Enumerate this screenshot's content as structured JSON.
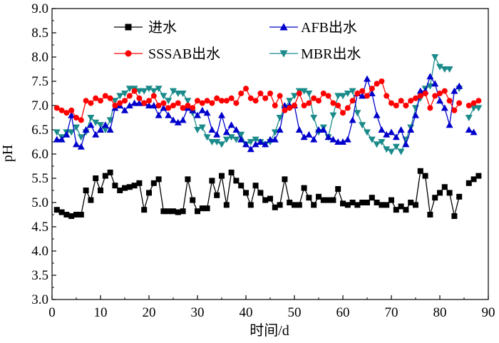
{
  "chart_data": {
    "type": "line",
    "xlabel": "时间/d",
    "ylabel": "pH",
    "xlim": [
      0,
      90
    ],
    "ylim": [
      3.0,
      9.0
    ],
    "xticks": [
      0,
      10,
      20,
      30,
      40,
      50,
      60,
      70,
      80,
      90
    ],
    "yticks": [
      3.0,
      3.5,
      4.0,
      4.5,
      5.0,
      5.5,
      6.0,
      6.5,
      7.0,
      7.5,
      8.0,
      8.5,
      9.0
    ],
    "legend_position": "top",
    "series": [
      {
        "name": "进水",
        "color": "#000000",
        "marker": "square",
        "x": [
          1,
          2,
          3,
          4,
          5,
          6,
          7,
          8,
          9,
          10,
          11,
          12,
          13,
          14,
          15,
          16,
          17,
          18,
          19,
          20,
          21,
          22,
          23,
          24,
          25,
          26,
          27,
          28,
          29,
          30,
          31,
          32,
          33,
          34,
          35,
          36,
          37,
          38,
          39,
          40,
          41,
          42,
          43,
          44,
          45,
          46,
          47,
          48,
          49,
          50,
          51,
          52,
          53,
          54,
          55,
          56,
          57,
          58,
          59,
          60,
          61,
          62,
          63,
          64,
          65,
          66,
          67,
          68,
          69,
          70,
          71,
          72,
          73,
          74,
          75,
          76,
          77,
          78,
          79,
          80,
          81,
          82,
          83,
          84,
          85,
          86,
          87,
          88
        ],
        "values": [
          4.85,
          4.8,
          4.75,
          4.72,
          4.75,
          4.75,
          5.25,
          5.05,
          5.5,
          5.25,
          5.55,
          5.62,
          5.35,
          5.25,
          5.3,
          5.32,
          5.35,
          5.4,
          4.85,
          5.2,
          5.4,
          5.48,
          4.82,
          4.82,
          4.82,
          4.8,
          4.82,
          5.48,
          5.05,
          4.82,
          4.88,
          4.88,
          5.45,
          5.15,
          5.55,
          4.95,
          5.62,
          5.45,
          5.35,
          5.2,
          4.95,
          5.35,
          5.2,
          5.05,
          5.08,
          4.9,
          4.95,
          5.48,
          5.0,
          4.95,
          4.95,
          5.3,
          5.1,
          4.95,
          5.12,
          5.05,
          5.05,
          5.05,
          5.28,
          4.98,
          4.95,
          5.0,
          4.95,
          5.0,
          5.0,
          5.1,
          5.0,
          4.95,
          4.95,
          5.05,
          4.85,
          4.92,
          4.85,
          5.0,
          4.95,
          5.65,
          5.55,
          4.75,
          5.1,
          5.2,
          5.32,
          5.2,
          4.72,
          5.12,
          null,
          5.4,
          5.48,
          5.55
        ]
      },
      {
        "name": "AFB出水",
        "color": "#0000cc",
        "marker": "triangle-up",
        "x": [
          1,
          2,
          3,
          4,
          5,
          6,
          7,
          8,
          9,
          10,
          11,
          12,
          13,
          14,
          15,
          16,
          17,
          18,
          19,
          20,
          21,
          22,
          23,
          24,
          25,
          26,
          27,
          28,
          29,
          30,
          31,
          32,
          33,
          34,
          35,
          36,
          37,
          38,
          39,
          40,
          41,
          42,
          43,
          44,
          45,
          46,
          47,
          48,
          49,
          50,
          51,
          52,
          53,
          54,
          55,
          56,
          57,
          58,
          59,
          60,
          61,
          62,
          63,
          64,
          65,
          66,
          67,
          68,
          69,
          70,
          71,
          72,
          73,
          74,
          75,
          76,
          77,
          78,
          79,
          80,
          81,
          82,
          83,
          84,
          85,
          86,
          87,
          88
        ],
        "values": [
          6.3,
          6.3,
          6.4,
          6.8,
          6.2,
          6.15,
          6.5,
          6.6,
          6.4,
          6.5,
          6.6,
          6.5,
          6.95,
          7.0,
          6.9,
          7.0,
          7.05,
          7.05,
          7.05,
          7.0,
          7.0,
          6.8,
          6.95,
          6.8,
          6.7,
          6.65,
          6.7,
          6.95,
          6.9,
          6.8,
          6.9,
          6.85,
          6.5,
          6.4,
          6.8,
          6.45,
          6.6,
          6.5,
          6.3,
          6.2,
          6.1,
          6.2,
          6.25,
          6.2,
          6.3,
          6.3,
          6.5,
          7.0,
          7.0,
          7.0,
          6.5,
          6.35,
          6.4,
          6.3,
          6.5,
          6.5,
          6.35,
          6.3,
          6.25,
          6.25,
          6.3,
          6.7,
          7.25,
          7.2,
          7.55,
          7.25,
          6.8,
          6.5,
          6.4,
          6.45,
          6.35,
          6.5,
          6.2,
          6.5,
          6.8,
          7.3,
          7.3,
          7.6,
          7.45,
          7.1,
          6.95,
          6.6,
          7.3,
          7.4,
          null,
          6.5,
          6.45,
          null
        ]
      },
      {
        "name": "SSSAB出水",
        "color": "#ff0000",
        "marker": "circle",
        "x": [
          1,
          2,
          3,
          4,
          5,
          6,
          7,
          8,
          9,
          10,
          11,
          12,
          13,
          14,
          15,
          16,
          17,
          18,
          19,
          20,
          21,
          22,
          23,
          24,
          25,
          26,
          27,
          28,
          29,
          30,
          31,
          32,
          33,
          34,
          35,
          36,
          37,
          38,
          39,
          40,
          41,
          42,
          43,
          44,
          45,
          46,
          47,
          48,
          49,
          50,
          51,
          52,
          53,
          54,
          55,
          56,
          57,
          58,
          59,
          60,
          61,
          62,
          63,
          64,
          65,
          66,
          67,
          68,
          69,
          70,
          71,
          72,
          73,
          74,
          75,
          76,
          77,
          78,
          79,
          80,
          81,
          82,
          83,
          84,
          85,
          86,
          87,
          88
        ],
        "values": [
          6.95,
          6.9,
          6.85,
          6.9,
          6.75,
          6.7,
          7.1,
          7.05,
          7.15,
          7.1,
          7.2,
          7.15,
          7.0,
          7.05,
          7.1,
          7.2,
          7.3,
          7.15,
          7.05,
          7.1,
          7.2,
          7.0,
          7.05,
          6.95,
          7.0,
          7.05,
          6.95,
          7.0,
          6.95,
          7.1,
          7.05,
          7.1,
          7.05,
          7.15,
          7.1,
          7.1,
          7.15,
          7.05,
          7.25,
          7.35,
          7.15,
          7.1,
          7.25,
          7.15,
          7.25,
          7.0,
          7.2,
          6.9,
          6.95,
          7.0,
          7.25,
          7.0,
          7.05,
          7.15,
          7.1,
          7.25,
          7.2,
          7.05,
          7.0,
          6.85,
          6.95,
          7.1,
          7.25,
          7.3,
          7.2,
          7.35,
          7.45,
          7.5,
          7.2,
          7.05,
          7.0,
          7.1,
          7.0,
          7.1,
          7.15,
          7.2,
          7.25,
          6.95,
          7.2,
          7.25,
          7.3,
          7.1,
          6.9,
          7.05,
          null,
          7.0,
          7.05,
          7.1
        ]
      },
      {
        "name": "MBR出水",
        "color": "#1a8a8a",
        "marker": "triangle-down",
        "x": [
          1,
          2,
          3,
          4,
          5,
          6,
          7,
          8,
          9,
          10,
          11,
          12,
          13,
          14,
          15,
          16,
          17,
          18,
          19,
          20,
          21,
          22,
          23,
          24,
          25,
          26,
          27,
          28,
          29,
          30,
          31,
          32,
          33,
          34,
          35,
          36,
          37,
          38,
          39,
          40,
          41,
          42,
          43,
          44,
          45,
          46,
          47,
          48,
          49,
          50,
          51,
          52,
          53,
          54,
          55,
          56,
          57,
          58,
          59,
          60,
          61,
          62,
          63,
          64,
          65,
          66,
          67,
          68,
          69,
          70,
          71,
          72,
          73,
          74,
          75,
          76,
          77,
          78,
          79,
          80,
          81,
          82,
          83,
          84,
          85,
          86,
          87,
          88
        ],
        "values": [
          6.45,
          6.35,
          6.45,
          6.45,
          6.55,
          6.35,
          6.45,
          6.75,
          6.65,
          6.6,
          6.5,
          6.7,
          7.1,
          7.2,
          7.25,
          7.35,
          7.35,
          7.3,
          7.3,
          7.35,
          7.3,
          7.35,
          7.2,
          7.1,
          7.3,
          7.25,
          7.25,
          7.1,
          6.85,
          6.5,
          6.55,
          6.35,
          6.25,
          6.25,
          6.2,
          6.3,
          6.35,
          6.3,
          6.4,
          6.2,
          6.25,
          6.3,
          6.25,
          6.2,
          6.25,
          6.45,
          6.75,
          6.95,
          7.1,
          7.2,
          7.3,
          7.3,
          7.25,
          6.75,
          6.45,
          6.55,
          6.35,
          6.8,
          7.2,
          7.2,
          7.25,
          7.3,
          6.85,
          6.6,
          6.45,
          6.3,
          6.2,
          6.25,
          6.1,
          6.05,
          6.15,
          6.05,
          6.3,
          6.55,
          6.95,
          7.15,
          7.35,
          7.4,
          8.0,
          7.8,
          7.75,
          7.75,
          null,
          7.35,
          null,
          6.75,
          6.95,
          6.95
        ]
      }
    ]
  }
}
